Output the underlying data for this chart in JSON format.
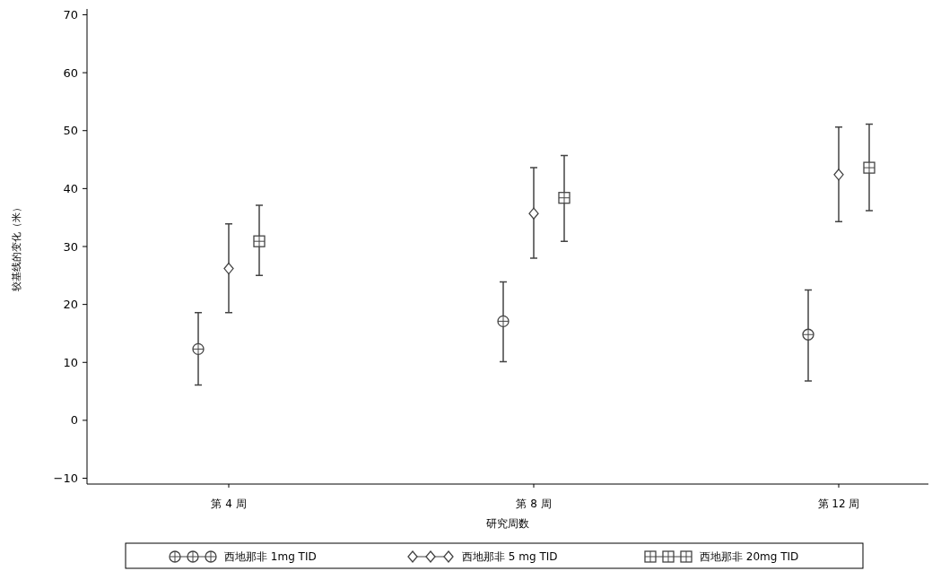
{
  "chart_data": {
    "type": "scatter",
    "xlabel": "研究周数",
    "ylabel": "较基线的变化（米）",
    "categories": [
      "第 4 周",
      "第 8 周",
      "第 12 周"
    ],
    "series": [
      {
        "name": "西地那非 1mg TID",
        "color": "#444444",
        "marker": "circle",
        "values": [
          12.3,
          17.1,
          14.8
        ],
        "errors": [
          [
            6.1,
            18.6
          ],
          [
            10.1,
            23.9
          ],
          [
            6.8,
            22.5
          ]
        ]
      },
      {
        "name": "西地那非 5 mg TID",
        "color": "#444444",
        "marker": "diamond",
        "values": [
          26.2,
          35.7,
          42.4
        ],
        "errors": [
          [
            18.6,
            33.9
          ],
          [
            28.0,
            43.6
          ],
          [
            34.3,
            50.6
          ]
        ]
      },
      {
        "name": "西地那非 20mg TID",
        "color": "#444444",
        "marker": "square",
        "values": [
          30.9,
          38.4,
          43.6
        ],
        "errors": [
          [
            25.0,
            37.1
          ],
          [
            30.9,
            45.7
          ],
          [
            36.2,
            51.1
          ]
        ]
      }
    ],
    "ylim": [
      -11,
      71
    ],
    "yticks": [
      -10,
      0,
      10,
      20,
      30,
      40,
      50,
      60,
      70
    ],
    "grid": false,
    "legend": "bottom"
  }
}
